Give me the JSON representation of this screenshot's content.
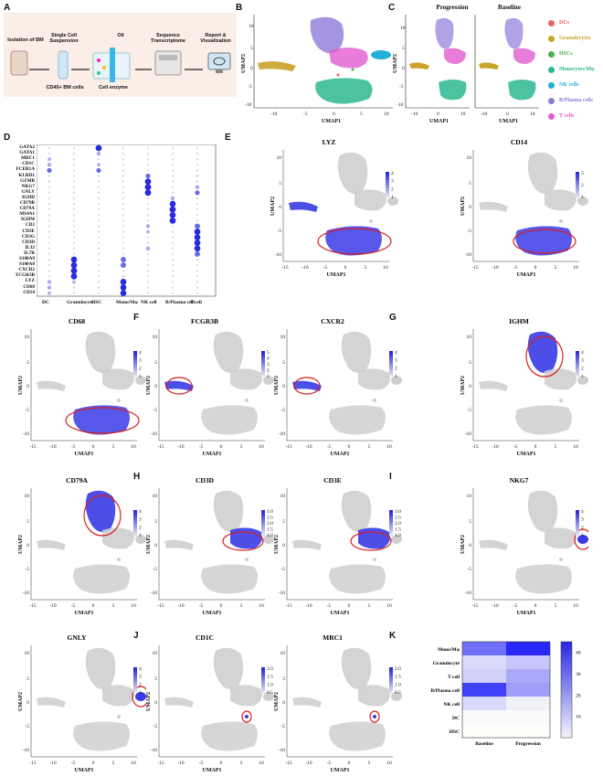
{
  "panels": {
    "A": {
      "label": "A",
      "steps": [
        "Isolation of BM",
        "Single Cell Suspension",
        "Oil",
        "Sequence Transcriptome",
        "Report & Visualization"
      ],
      "sublabels": [
        "CD45+ BM cells",
        "Cell enzyme"
      ]
    },
    "B": {
      "label": "B"
    },
    "C": {
      "label": "C",
      "titles": [
        "Progression",
        "Baseline"
      ]
    },
    "D": {
      "label": "D"
    },
    "E": {
      "label": "E"
    },
    "F": {
      "label": "F"
    },
    "G": {
      "label": "G"
    },
    "H": {
      "label": "H"
    },
    "I": {
      "label": "I"
    },
    "J": {
      "label": "J"
    },
    "K": {
      "label": "K"
    }
  },
  "legend": {
    "items": [
      {
        "name": "DCs",
        "color": "#f06060"
      },
      {
        "name": "Granulocytes",
        "color": "#c9a227"
      },
      {
        "name": "HSCs",
        "color": "#4caf50"
      },
      {
        "name": "Monocytes/Mφ",
        "color": "#2bb98f"
      },
      {
        "name": "NK cells",
        "color": "#22b0d8"
      },
      {
        "name": "B/Plasma cells",
        "color": "#8f7ad8"
      },
      {
        "name": "T cells",
        "color": "#e25bd0"
      }
    ]
  },
  "axes": {
    "umap1": "UMAP1",
    "umap2": "UMAP2"
  },
  "features": [
    {
      "id": "LYZ",
      "scale": [
        "4",
        "3",
        "2",
        "1"
      ]
    },
    {
      "id": "CD14",
      "scale": [
        "3",
        "2",
        "1"
      ]
    },
    {
      "id": "CD68",
      "scale": [
        "4",
        "3",
        "2",
        "1"
      ]
    },
    {
      "id": "FCGR3B",
      "scale": [
        "5",
        "4",
        "3",
        "2",
        "1"
      ]
    },
    {
      "id": "CXCR2",
      "scale": [
        "4",
        "3",
        "2",
        "1"
      ]
    },
    {
      "id": "IGHM",
      "scale": [
        "4",
        "3",
        "2",
        "1"
      ]
    },
    {
      "id": "CD79A",
      "scale": [
        "4",
        "3",
        "2",
        "1"
      ]
    },
    {
      "id": "CD3D",
      "scale": [
        "3.0",
        "2.5",
        "2.0",
        "1.5",
        "1.0"
      ]
    },
    {
      "id": "CD3E",
      "scale": [
        "3.0",
        "2.5",
        "2.0",
        "1.5",
        "1.0"
      ]
    },
    {
      "id": "NKG7",
      "scale": [
        "4",
        "3",
        "2",
        "1"
      ]
    },
    {
      "id": "GNLY",
      "scale": [
        "4",
        "3",
        "2",
        "1"
      ]
    },
    {
      "id": "CD1C",
      "scale": [
        "2.0",
        "1.5",
        "1.0",
        "0.5"
      ]
    },
    {
      "id": "MRC1",
      "scale": [
        "2.0",
        "1.5",
        "1.0",
        "0.5"
      ]
    }
  ],
  "dotplot": {
    "genes": [
      "GATA2",
      "GATA1",
      "MRC1",
      "CD1C",
      "FCER1A",
      "KLRD1",
      "GZMB",
      "NKG7",
      "GNLY",
      "IGHD",
      "CD79B",
      "CD79A",
      "MS4A1",
      "IGHM",
      "CD2",
      "CD3E",
      "CD3G",
      "CD3D",
      "IL32",
      "IL7R",
      "S100A9",
      "S100A8",
      "CXCR2",
      "FCGR3B",
      "LYZ",
      "CD68",
      "CD14"
    ],
    "cell_types": [
      "DC",
      "Granulocyte",
      "HSC",
      "Mono/Mφ",
      "NK cell",
      "B/Plasma cell",
      "T cell"
    ]
  },
  "chart_data": {
    "type": "heatmap",
    "title": "",
    "rows": [
      "Mono/Mφ",
      "Granulocyte",
      "T cell",
      "B/Plasma cell",
      "NK cell",
      "DC",
      "HSC"
    ],
    "columns": [
      "Baseline",
      "Progression"
    ],
    "values": [
      [
        30,
        45
      ],
      [
        8,
        12
      ],
      [
        10,
        18
      ],
      [
        40,
        20
      ],
      [
        8,
        3
      ],
      [
        1,
        1
      ],
      [
        0.5,
        0.5
      ]
    ],
    "colorbar_ticks": [
      "40",
      "30",
      "20",
      "10"
    ],
    "zlim": [
      0,
      45
    ]
  },
  "colors": {
    "accent": "#3030e0",
    "circle": "#d42020",
    "grey": "#cfcfcf"
  }
}
